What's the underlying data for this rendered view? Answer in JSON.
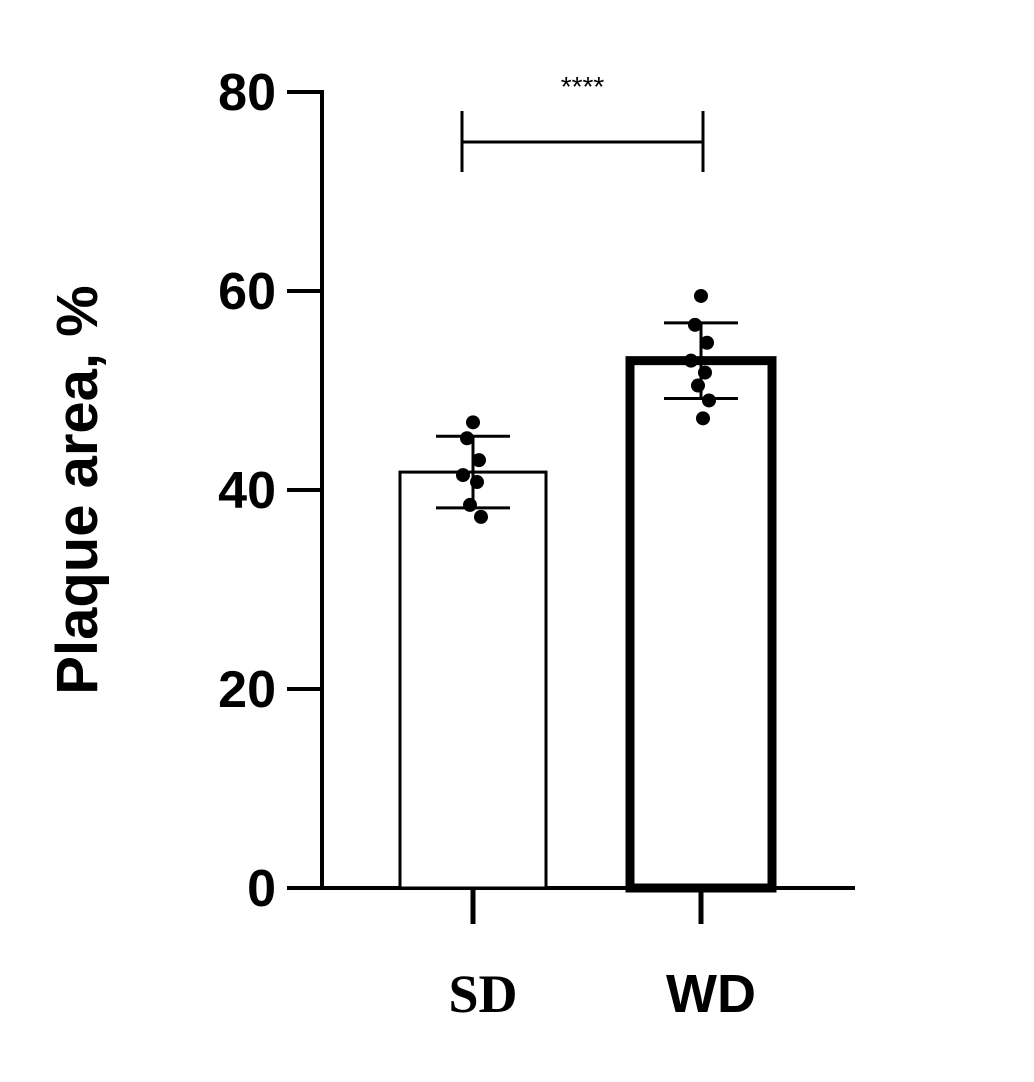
{
  "chart_data": {
    "type": "bar",
    "categories": [
      "SD",
      "WD"
    ],
    "series": [
      {
        "values": [
          41.8,
          53.0
        ],
        "error": [
          3.6,
          3.8
        ]
      }
    ],
    "points": [
      [
        46.8,
        45.2,
        43.0,
        41.5,
        40.8,
        38.5,
        37.3
      ],
      [
        59.5,
        56.6,
        54.8,
        53.0,
        51.8,
        50.5,
        49.0,
        47.2
      ]
    ],
    "bar_outline_width": [
      "thin",
      "thick"
    ],
    "significance": {
      "label": "****",
      "between": [
        "SD",
        "WD"
      ],
      "y": 75
    },
    "ylabel": "Plaque area, %",
    "xlabel": "",
    "ylim": [
      0,
      80
    ],
    "yticks": [
      "0",
      "20",
      "40",
      "60",
      "80"
    ],
    "grid": false,
    "legend": "none",
    "colors": {
      "bar_fill": "#ffffff",
      "outline": "#000000",
      "points": "#000000"
    }
  }
}
